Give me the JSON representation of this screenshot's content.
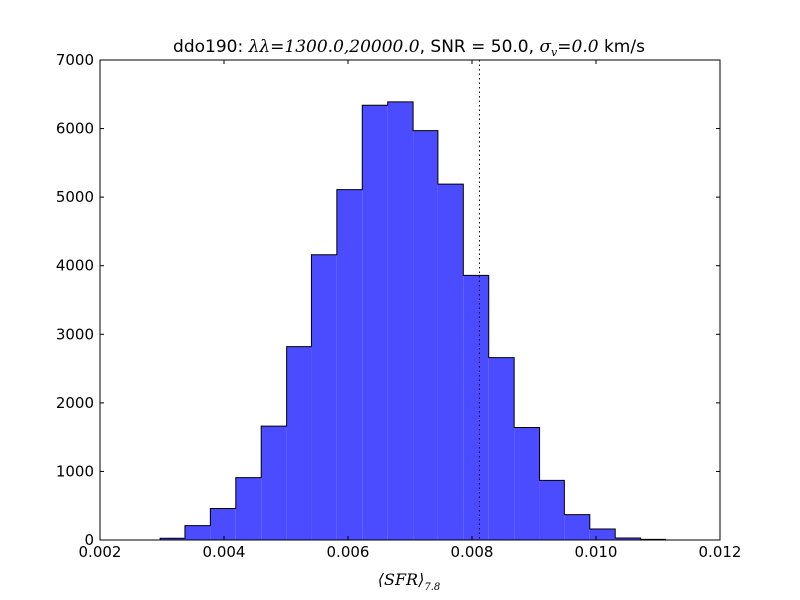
{
  "chart_data": {
    "type": "bar",
    "title_prefix": "ddo190: ",
    "title_lambda": "λλ",
    "title_range": "=1300.0,20000.0",
    "title_snr": ", SNR = 50.0, ",
    "title_sigma": "σ",
    "title_sigma_sub": "v",
    "title_sigma_val": "=0.0",
    "title_units": " km/s",
    "xlabel_main": "⟨SFR⟩",
    "xlabel_sub": "7.8",
    "xlim": [
      0.002,
      0.012
    ],
    "ylim": [
      0,
      7000
    ],
    "xticks": [
      0.002,
      0.004,
      0.006,
      0.008,
      0.01,
      0.012
    ],
    "xtick_labels": [
      "0.002",
      "0.004",
      "0.006",
      "0.008",
      "0.010",
      "0.012"
    ],
    "yticks": [
      0,
      1000,
      2000,
      3000,
      4000,
      5000,
      6000,
      7000
    ],
    "ytick_labels": [
      "0",
      "1000",
      "2000",
      "3000",
      "4000",
      "5000",
      "6000",
      "7000"
    ],
    "bin_edges": [
      0.00297,
      0.00337,
      0.00378,
      0.00419,
      0.0046,
      0.00501,
      0.00541,
      0.00582,
      0.00623,
      0.00664,
      0.00705,
      0.00745,
      0.00786,
      0.00827,
      0.00868,
      0.00909,
      0.00949,
      0.0099,
      0.01031,
      0.01072,
      0.01112
    ],
    "counts": [
      25,
      210,
      460,
      910,
      1660,
      2820,
      4160,
      5110,
      6340,
      6390,
      5970,
      5190,
      3860,
      2660,
      1640,
      870,
      370,
      160,
      30,
      10
    ],
    "vline_x": 0.00812,
    "colors": {
      "bar_fill": "#4b4bff",
      "bar_edge": "#000000",
      "vline": "#000000"
    }
  }
}
